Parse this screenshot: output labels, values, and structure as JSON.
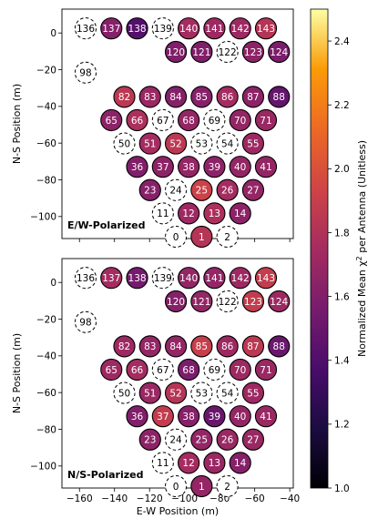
{
  "chart_data": [
    {
      "type": "scatter",
      "panel_label": "E/W-Polarized",
      "xlabel": "",
      "ylabel": "N-S Position (m)",
      "xlim": [
        -170,
        -38
      ],
      "ylim": [
        -112,
        13
      ],
      "xticks": [
        -160,
        -140,
        -120,
        -100,
        -80,
        -60,
        -40
      ],
      "yticks": [
        0,
        -20,
        -40,
        -60,
        -80,
        -100
      ],
      "antennas": [
        {
          "id": 136,
          "x": -156.5,
          "y": 2.5,
          "value": null
        },
        {
          "id": 137,
          "x": -141.8,
          "y": 2.5,
          "value": 1.62
        },
        {
          "id": 138,
          "x": -127.1,
          "y": 2.5,
          "value": 1.42
        },
        {
          "id": 139,
          "x": -112.4,
          "y": 2.5,
          "value": null
        },
        {
          "id": 140,
          "x": -97.7,
          "y": 2.5,
          "value": 1.75
        },
        {
          "id": 141,
          "x": -83.0,
          "y": 2.5,
          "value": 1.72
        },
        {
          "id": 142,
          "x": -68.3,
          "y": 2.5,
          "value": 1.72
        },
        {
          "id": 143,
          "x": -53.6,
          "y": 2.5,
          "value": 1.82
        },
        {
          "id": 120,
          "x": -105.0,
          "y": -10.3,
          "value": 1.6
        },
        {
          "id": 121,
          "x": -90.3,
          "y": -10.3,
          "value": 1.6
        },
        {
          "id": 122,
          "x": -75.6,
          "y": -10.3,
          "value": null
        },
        {
          "id": 123,
          "x": -60.9,
          "y": -10.3,
          "value": 1.65
        },
        {
          "id": 124,
          "x": -46.2,
          "y": -10.3,
          "value": 1.58
        },
        {
          "id": 98,
          "x": -156.5,
          "y": -21.6,
          "value": null
        },
        {
          "id": 82,
          "x": -134.4,
          "y": -34.8,
          "value": 1.85
        },
        {
          "id": 83,
          "x": -119.7,
          "y": -34.8,
          "value": 1.7
        },
        {
          "id": 84,
          "x": -105.0,
          "y": -34.8,
          "value": 1.62
        },
        {
          "id": 85,
          "x": -90.3,
          "y": -34.8,
          "value": 1.62
        },
        {
          "id": 86,
          "x": -75.6,
          "y": -34.8,
          "value": 1.75
        },
        {
          "id": 87,
          "x": -60.9,
          "y": -34.8,
          "value": 1.65
        },
        {
          "id": 88,
          "x": -46.2,
          "y": -34.8,
          "value": 1.48
        },
        {
          "id": 65,
          "x": -141.8,
          "y": -47.5,
          "value": 1.65
        },
        {
          "id": 66,
          "x": -127.1,
          "y": -47.5,
          "value": 1.78
        },
        {
          "id": 67,
          "x": -112.4,
          "y": -47.5,
          "value": null
        },
        {
          "id": 68,
          "x": -97.7,
          "y": -47.5,
          "value": 1.68
        },
        {
          "id": 69,
          "x": -83.0,
          "y": -47.5,
          "value": null
        },
        {
          "id": 70,
          "x": -68.3,
          "y": -47.5,
          "value": 1.68
        },
        {
          "id": 71,
          "x": -53.6,
          "y": -47.5,
          "value": 1.7
        },
        {
          "id": 50,
          "x": -134.4,
          "y": -60.2,
          "value": null
        },
        {
          "id": 51,
          "x": -119.7,
          "y": -60.2,
          "value": 1.75
        },
        {
          "id": 52,
          "x": -105.0,
          "y": -60.2,
          "value": 1.85
        },
        {
          "id": 53,
          "x": -90.3,
          "y": -60.2,
          "value": null
        },
        {
          "id": 54,
          "x": -75.6,
          "y": -60.2,
          "value": null
        },
        {
          "id": 55,
          "x": -60.9,
          "y": -60.2,
          "value": 1.72
        },
        {
          "id": 36,
          "x": -127.1,
          "y": -72.9,
          "value": 1.6
        },
        {
          "id": 37,
          "x": -112.4,
          "y": -72.9,
          "value": 1.65
        },
        {
          "id": 38,
          "x": -97.7,
          "y": -72.9,
          "value": 1.68
        },
        {
          "id": 39,
          "x": -83.0,
          "y": -72.9,
          "value": 1.65
        },
        {
          "id": 40,
          "x": -68.3,
          "y": -72.9,
          "value": 1.68
        },
        {
          "id": 41,
          "x": -53.6,
          "y": -72.9,
          "value": 1.68
        },
        {
          "id": 23,
          "x": -119.7,
          "y": -85.6,
          "value": 1.62
        },
        {
          "id": 24,
          "x": -105.0,
          "y": -85.6,
          "value": null
        },
        {
          "id": 25,
          "x": -90.3,
          "y": -85.6,
          "value": 1.92
        },
        {
          "id": 26,
          "x": -75.6,
          "y": -85.6,
          "value": 1.75
        },
        {
          "id": 27,
          "x": -60.9,
          "y": -85.6,
          "value": 1.68
        },
        {
          "id": 11,
          "x": -112.4,
          "y": -98.3,
          "value": null
        },
        {
          "id": 12,
          "x": -97.7,
          "y": -98.3,
          "value": 1.72
        },
        {
          "id": 13,
          "x": -83.0,
          "y": -98.3,
          "value": 1.78
        },
        {
          "id": 14,
          "x": -68.3,
          "y": -98.3,
          "value": 1.65
        },
        {
          "id": 0,
          "x": -105.0,
          "y": -111.0,
          "value": null
        },
        {
          "id": 1,
          "x": -90.3,
          "y": -111.0,
          "value": 1.82
        },
        {
          "id": 2,
          "x": -75.6,
          "y": -111.0,
          "value": null
        }
      ]
    },
    {
      "type": "scatter",
      "panel_label": "N/S-Polarized",
      "xlabel": "E-W Position (m)",
      "ylabel": "N-S Position (m)",
      "xlim": [
        -170,
        -38
      ],
      "ylim": [
        -112,
        13
      ],
      "xticks": [
        -160,
        -140,
        -120,
        -100,
        -80,
        -60,
        -40
      ],
      "yticks": [
        0,
        -20,
        -40,
        -60,
        -80,
        -100
      ],
      "antennas": [
        {
          "id": 136,
          "x": -156.5,
          "y": 2.5,
          "value": null
        },
        {
          "id": 137,
          "x": -141.8,
          "y": 2.5,
          "value": 1.75
        },
        {
          "id": 138,
          "x": -127.1,
          "y": 2.5,
          "value": 1.55
        },
        {
          "id": 139,
          "x": -112.4,
          "y": 2.5,
          "value": null
        },
        {
          "id": 140,
          "x": -97.7,
          "y": 2.5,
          "value": 1.68
        },
        {
          "id": 141,
          "x": -83.0,
          "y": 2.5,
          "value": 1.68
        },
        {
          "id": 142,
          "x": -68.3,
          "y": 2.5,
          "value": 1.72
        },
        {
          "id": 143,
          "x": -53.6,
          "y": 2.5,
          "value": 1.88
        },
        {
          "id": 120,
          "x": -105.0,
          "y": -10.3,
          "value": 1.62
        },
        {
          "id": 121,
          "x": -90.3,
          "y": -10.3,
          "value": 1.68
        },
        {
          "id": 122,
          "x": -75.6,
          "y": -10.3,
          "value": null
        },
        {
          "id": 123,
          "x": -60.9,
          "y": -10.3,
          "value": 1.88
        },
        {
          "id": 124,
          "x": -46.2,
          "y": -10.3,
          "value": 1.72
        },
        {
          "id": 98,
          "x": -156.5,
          "y": -21.6,
          "value": null
        },
        {
          "id": 82,
          "x": -134.4,
          "y": -34.8,
          "value": 1.72
        },
        {
          "id": 83,
          "x": -119.7,
          "y": -34.8,
          "value": 1.68
        },
        {
          "id": 84,
          "x": -105.0,
          "y": -34.8,
          "value": 1.68
        },
        {
          "id": 85,
          "x": -90.3,
          "y": -34.8,
          "value": 1.9
        },
        {
          "id": 86,
          "x": -75.6,
          "y": -34.8,
          "value": 1.72
        },
        {
          "id": 87,
          "x": -60.9,
          "y": -34.8,
          "value": 1.85
        },
        {
          "id": 88,
          "x": -46.2,
          "y": -34.8,
          "value": 1.5
        },
        {
          "id": 65,
          "x": -141.8,
          "y": -47.5,
          "value": 1.72
        },
        {
          "id": 66,
          "x": -127.1,
          "y": -47.5,
          "value": 1.75
        },
        {
          "id": 67,
          "x": -112.4,
          "y": -47.5,
          "value": null
        },
        {
          "id": 68,
          "x": -97.7,
          "y": -47.5,
          "value": 1.58
        },
        {
          "id": 69,
          "x": -83.0,
          "y": -47.5,
          "value": null
        },
        {
          "id": 70,
          "x": -68.3,
          "y": -47.5,
          "value": 1.72
        },
        {
          "id": 71,
          "x": -53.6,
          "y": -47.5,
          "value": 1.7
        },
        {
          "id": 50,
          "x": -134.4,
          "y": -60.2,
          "value": null
        },
        {
          "id": 51,
          "x": -119.7,
          "y": -60.2,
          "value": 1.7
        },
        {
          "id": 52,
          "x": -105.0,
          "y": -60.2,
          "value": 1.82
        },
        {
          "id": 53,
          "x": -90.3,
          "y": -60.2,
          "value": null
        },
        {
          "id": 54,
          "x": -75.6,
          "y": -60.2,
          "value": null
        },
        {
          "id": 55,
          "x": -60.9,
          "y": -60.2,
          "value": 1.72
        },
        {
          "id": 36,
          "x": -127.1,
          "y": -72.9,
          "value": 1.6
        },
        {
          "id": 37,
          "x": -112.4,
          "y": -72.9,
          "value": 1.88
        },
        {
          "id": 38,
          "x": -97.7,
          "y": -72.9,
          "value": 1.62
        },
        {
          "id": 39,
          "x": -83.0,
          "y": -72.9,
          "value": 1.5
        },
        {
          "id": 40,
          "x": -68.3,
          "y": -72.9,
          "value": 1.68
        },
        {
          "id": 41,
          "x": -53.6,
          "y": -72.9,
          "value": 1.7
        },
        {
          "id": 23,
          "x": -119.7,
          "y": -85.6,
          "value": 1.65
        },
        {
          "id": 24,
          "x": -105.0,
          "y": -85.6,
          "value": null
        },
        {
          "id": 25,
          "x": -90.3,
          "y": -85.6,
          "value": 1.68
        },
        {
          "id": 26,
          "x": -75.6,
          "y": -85.6,
          "value": 1.7
        },
        {
          "id": 27,
          "x": -60.9,
          "y": -85.6,
          "value": 1.7
        },
        {
          "id": 11,
          "x": -112.4,
          "y": -98.3,
          "value": null
        },
        {
          "id": 12,
          "x": -97.7,
          "y": -98.3,
          "value": 1.75
        },
        {
          "id": 13,
          "x": -83.0,
          "y": -98.3,
          "value": 1.7
        },
        {
          "id": 14,
          "x": -68.3,
          "y": -98.3,
          "value": 1.62
        },
        {
          "id": 0,
          "x": -105.0,
          "y": -111.0,
          "value": null
        },
        {
          "id": 1,
          "x": -90.3,
          "y": -111.0,
          "value": 1.68
        },
        {
          "id": 2,
          "x": -75.6,
          "y": -111.0,
          "value": null
        }
      ]
    }
  ],
  "colorbar": {
    "label": "Normalized Mean χ² per Antenna (Unitless)",
    "range": [
      1.0,
      2.5
    ],
    "ticks": [
      "1.0",
      "1.2",
      "1.4",
      "1.6",
      "1.8",
      "2.0",
      "2.2",
      "2.4"
    ],
    "colormap": "inferno"
  }
}
